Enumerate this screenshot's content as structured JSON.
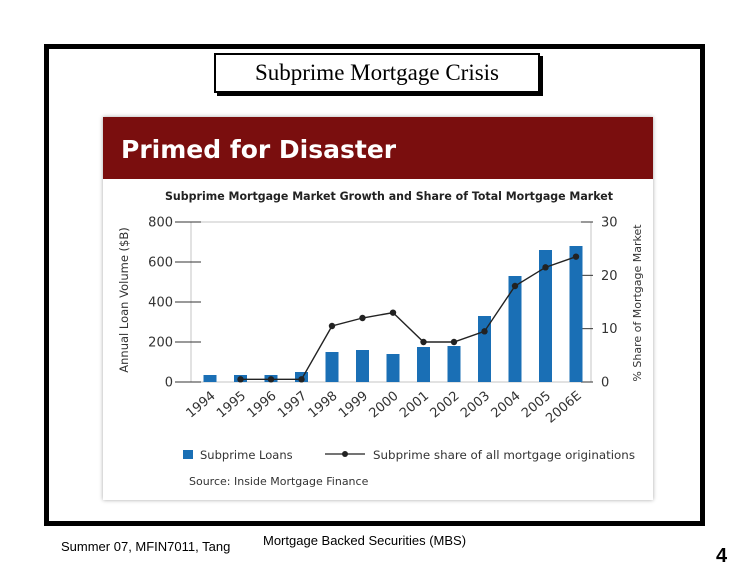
{
  "slide": {
    "title": "Subprime Mortgage Crisis",
    "footer_left": "Summer 07, MFIN7011, Tang",
    "footer_center": "Mortgage Backed Securities (MBS)",
    "page_number": "4"
  },
  "colors": {
    "banner": "#7a0e0e",
    "bar": "#1a6fb5",
    "line": "#222222",
    "plot_border": "#c6c6c6",
    "frame": "#000000"
  },
  "chart_data": {
    "type": "bar",
    "banner_title": "Primed for Disaster",
    "title": "Subprime Mortgage Market Growth and Share of Total Mortgage Market",
    "ylabel": "Annual Loan Volume ($B)",
    "y2label": "% Share of Mortgage Market",
    "ylim": [
      0,
      800
    ],
    "y2lim": [
      0,
      30
    ],
    "y_ticks": [
      0,
      200,
      400,
      600,
      800
    ],
    "y2_ticks": [
      0,
      10,
      20,
      30
    ],
    "categories": [
      "1994",
      "1995",
      "1996",
      "1997",
      "1998",
      "1999",
      "2000",
      "2001",
      "2002",
      "2003",
      "2004",
      "2005",
      "2006E"
    ],
    "series": [
      {
        "name": "Subprime Loans",
        "type": "bar",
        "axis": "left",
        "values": [
          35,
          35,
          35,
          50,
          150,
          160,
          140,
          175,
          180,
          330,
          530,
          660,
          680
        ]
      },
      {
        "name": "Subprime share of all mortgage originations",
        "type": "line",
        "axis": "right",
        "values": [
          null,
          0.5,
          0.5,
          0.5,
          10.5,
          12,
          13,
          7.5,
          7.5,
          9.5,
          18,
          21.5,
          23.5
        ]
      }
    ],
    "source": "Source: Inside Mortgage Finance",
    "legend_position": "bottom",
    "grid": false
  }
}
